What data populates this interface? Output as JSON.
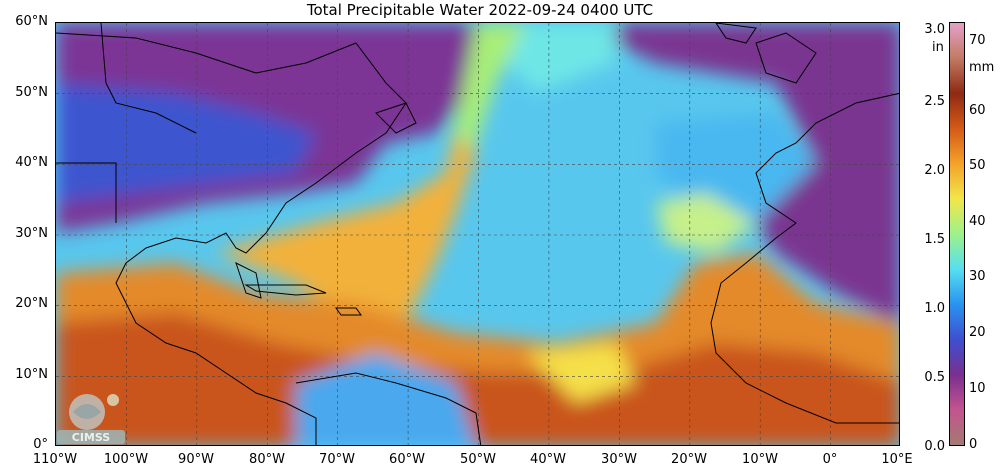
{
  "title": "Total Precipitable Water  2022-09-24 0400 UTC",
  "map": {
    "lat_labels": [
      "60°N",
      "50°N",
      "40°N",
      "30°N",
      "20°N",
      "10°N",
      "0°"
    ],
    "lon_labels": [
      "110°W",
      "100°W",
      "90°W",
      "80°W",
      "70°W",
      "60°W",
      "50°W",
      "40°W",
      "30°W",
      "20°W",
      "10°W",
      "0°",
      "10°E"
    ],
    "extent": {
      "lon_min": -110,
      "lon_max": 10,
      "lat_min": 0,
      "lat_max": 60
    },
    "grid": true,
    "logo_text": "CIMSS"
  },
  "colorbar": {
    "unit_left": "in",
    "unit_right": "mm",
    "inch_ticks": [
      "3.0",
      "2.5",
      "2.0",
      "1.5",
      "1.0",
      "0.5",
      "0.0"
    ],
    "mm_ticks": [
      "70",
      "60",
      "50",
      "40",
      "30",
      "20",
      "10",
      "0"
    ],
    "colors": [
      "#a47a72",
      "#c3548f",
      "#7a2f8f",
      "#3f4fd0",
      "#2a93ef",
      "#56dff0",
      "#9ef28a",
      "#f1e64a",
      "#f4a22a",
      "#d35a17",
      "#8e2a12",
      "#c27a64",
      "#e6a0c8"
    ]
  }
}
